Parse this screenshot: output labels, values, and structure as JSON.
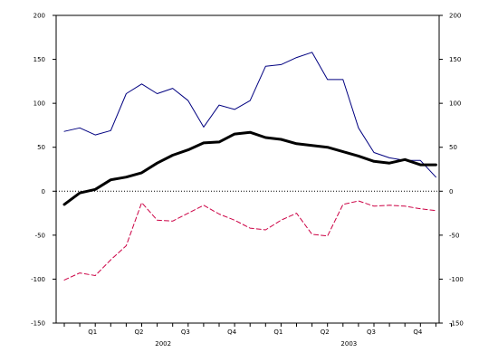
{
  "chart_data": {
    "type": "line",
    "title": "",
    "xlabel": "",
    "ylabel": "",
    "ylim": [
      -150,
      200
    ],
    "yticks": [
      -150,
      -100,
      -50,
      0,
      50,
      100,
      150,
      200
    ],
    "ytick_labels": [
      "-150",
      "-100",
      "-50",
      "0",
      "50",
      "100",
      "150",
      "200"
    ],
    "grid": false,
    "zero_line": "dotted",
    "x_count": 25,
    "quarter_ticks": [
      {
        "label": "Q1",
        "index": 2
      },
      {
        "label": "Q2",
        "index": 5
      },
      {
        "label": "Q3",
        "index": 8
      },
      {
        "label": "Q4",
        "index": 11
      },
      {
        "label": "Q1",
        "index": 14
      },
      {
        "label": "Q2",
        "index": 17
      },
      {
        "label": "Q3",
        "index": 20
      },
      {
        "label": "Q4",
        "index": 23
      }
    ],
    "year_labels": [
      {
        "label": "2002",
        "index": 6.5
      },
      {
        "label": "2003",
        "index": 18.5
      }
    ],
    "series": [
      {
        "color": "#000080",
        "style": "solid",
        "width": 1,
        "values": [
          68,
          72,
          64,
          69,
          111,
          122,
          111,
          117,
          103,
          73,
          98,
          93,
          103,
          142,
          144,
          152,
          158,
          127,
          127,
          72,
          44,
          38,
          35,
          35,
          16
        ]
      },
      {
        "color": "#000000",
        "style": "solid",
        "width": 3,
        "values": [
          -15,
          -2,
          2,
          13,
          16,
          21,
          32,
          41,
          47,
          55,
          56,
          65,
          67,
          61,
          59,
          54,
          52,
          50,
          45,
          40,
          34,
          32,
          36,
          30,
          30
        ]
      },
      {
        "color": "#cc0044",
        "style": "dashed",
        "width": 1,
        "values": [
          -101,
          -93,
          -96,
          -78,
          -62,
          -13,
          -33,
          -34,
          -25,
          -16,
          -26,
          -33,
          -42,
          -44,
          -33,
          -25,
          -49,
          -51,
          -15,
          -11,
          -17,
          -16,
          -17,
          -20,
          -22
        ]
      }
    ]
  }
}
